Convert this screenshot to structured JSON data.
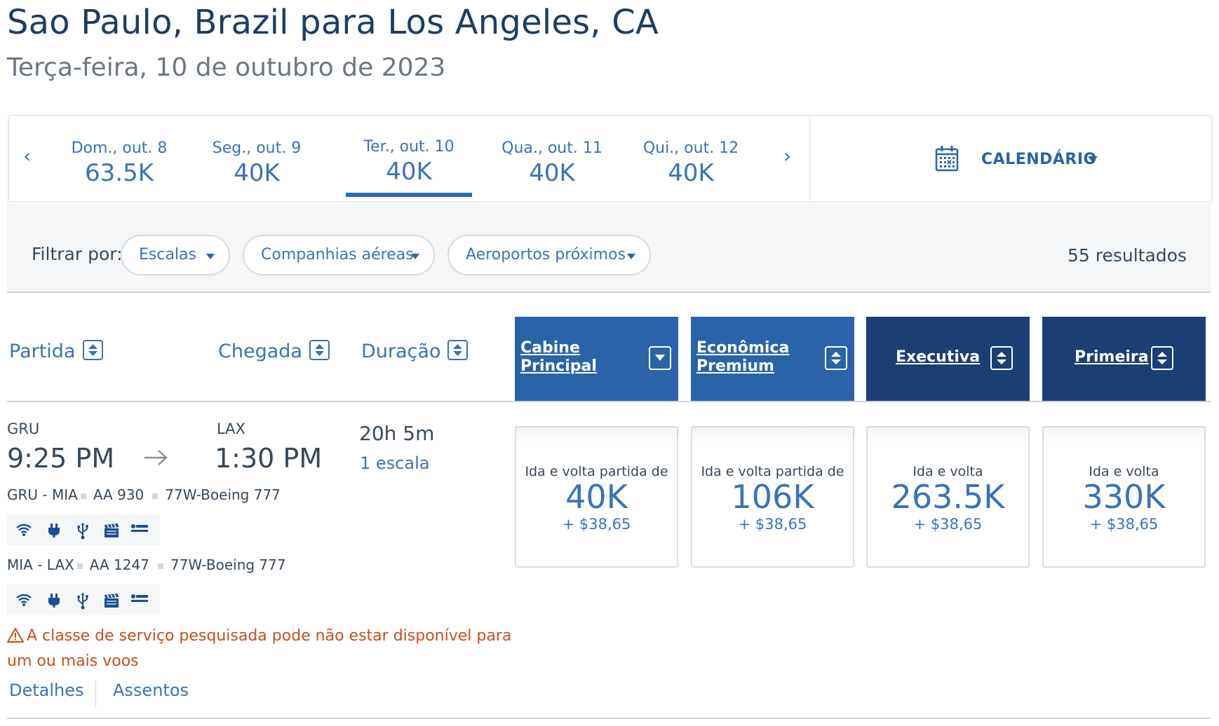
{
  "header": {
    "title": "Sao Paulo, Brazil para Los Angeles, CA",
    "subtitle": "Terça-feira, 10 de outubro de 2023"
  },
  "date_strip": {
    "prev_arrow": "‹",
    "next_arrow": "›",
    "dates": [
      {
        "label": "Dom., out. 8",
        "miles": "63.5K"
      },
      {
        "label": "Seg., out. 9",
        "miles": "40K"
      },
      {
        "label": "Ter., out. 10",
        "miles": "40K",
        "selected": true
      },
      {
        "label": "Qua., out. 11",
        "miles": "40K"
      },
      {
        "label": "Qui., out. 12",
        "miles": "40K"
      }
    ],
    "calendar_label": "CALENDÁRIO",
    "calendar_icon": "calendar-icon"
  },
  "filters": {
    "label": "Filtrar por:",
    "pills": [
      "Escalas",
      "Companhias aéreas",
      "Aeroportos próximos"
    ],
    "results": "55 resultados"
  },
  "columns": {
    "departure": "Partida",
    "arrival": "Chegada",
    "duration": "Duração",
    "cabins": [
      {
        "line1": "Cabine",
        "line2": "Principal"
      },
      {
        "line1": "Econômica",
        "line2": "Premium"
      },
      {
        "line1": "Executiva",
        "line2": ""
      },
      {
        "line1": "Primeira",
        "line2": ""
      }
    ]
  },
  "flight": {
    "origin_code": "GRU",
    "depart_time": "9:25 PM",
    "dest_code": "LAX",
    "arrive_time": "1:30 PM",
    "duration": "20h 5m",
    "stops": "1 escala",
    "segments": [
      {
        "route": "GRU - MIA",
        "flight": "AA 930",
        "aircraft": "77W-Boeing 777",
        "amenities": [
          "wifi-icon",
          "power-icon",
          "usb-icon",
          "entertainment-icon",
          "lie-flat-seat-icon"
        ]
      },
      {
        "route": "MIA - LAX",
        "flight": "AA 1247",
        "aircraft": "77W-Boeing 777",
        "amenities": [
          "wifi-icon",
          "power-icon",
          "usb-icon",
          "entertainment-icon",
          "lie-flat-seat-icon"
        ]
      }
    ],
    "warning": "A classe de serviço pesquisada pode não estar disponível para um ou mais voos",
    "details_link": "Detalhes",
    "seats_link": "Assentos",
    "fares": [
      {
        "label": "Ida e volta partida de",
        "miles": "40K",
        "taxes": "+ $38,65"
      },
      {
        "label": "Ida e volta partida de",
        "miles": "106K",
        "taxes": "+ $38,65"
      },
      {
        "label": "Ida e volta",
        "miles": "263.5K",
        "taxes": "+ $38,65"
      },
      {
        "label": "Ida e volta",
        "miles": "330K",
        "taxes": "+ $38,65"
      }
    ]
  },
  "colors": {
    "primary_text": "#1d3e63",
    "link_blue": "#3c72b6",
    "cabin_blue": "#2a63a8",
    "cabin_dark": "#1b3f73",
    "warning": "#c64f1b"
  }
}
